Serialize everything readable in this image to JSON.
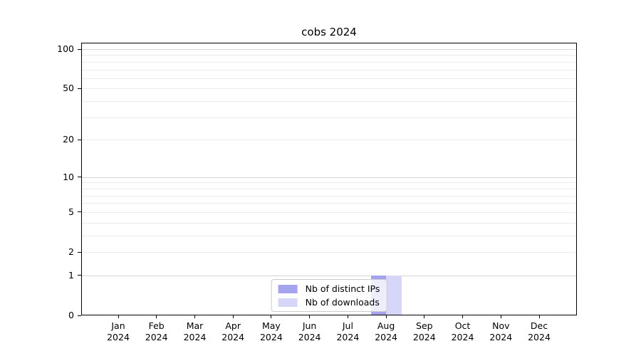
{
  "chart_data": {
    "type": "bar",
    "title": "cobs 2024",
    "x": {
      "months": [
        "Jan",
        "Feb",
        "Mar",
        "Apr",
        "May",
        "Jun",
        "Jul",
        "Aug",
        "Sep",
        "Oct",
        "Nov",
        "Dec"
      ],
      "year": "2024"
    },
    "series": [
      {
        "name": "Nb of distinct IPs",
        "color": "#a4a4ee",
        "values": [
          0,
          0,
          0,
          0,
          0,
          0,
          0,
          1,
          0,
          0,
          0,
          0
        ]
      },
      {
        "name": "Nb of downloads",
        "color": "#d6d6f8",
        "values": [
          0,
          0,
          0,
          0,
          0,
          0,
          0,
          1,
          0,
          0,
          0,
          0
        ]
      }
    ],
    "y_axis": {
      "scale": "log1p",
      "ticks": [
        0,
        1,
        2,
        5,
        10,
        20,
        50,
        100
      ],
      "min": 0,
      "max": 113
    },
    "grid": {
      "major": [
        1,
        10,
        100
      ],
      "minor": [
        2,
        3,
        4,
        5,
        6,
        7,
        8,
        9,
        20,
        30,
        40,
        50,
        60,
        70,
        80,
        90
      ],
      "major_color": "#d6d6d6",
      "minor_color": "#ececec"
    },
    "legend": {
      "position": "lower center",
      "items": [
        "Nb of distinct IPs",
        "Nb of downloads"
      ]
    }
  }
}
